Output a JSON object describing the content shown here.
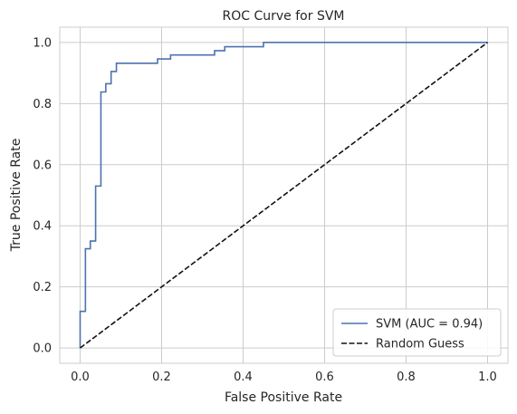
{
  "chart_data": {
    "type": "line",
    "title": "ROC Curve for SVM",
    "xlabel": "False Positive Rate",
    "ylabel": "True Positive Rate",
    "xlim": [
      -0.05,
      1.05
    ],
    "ylim": [
      -0.05,
      1.05
    ],
    "xticks": [
      "0.0",
      "0.2",
      "0.4",
      "0.6",
      "0.8",
      "1.0"
    ],
    "yticks": [
      "0.0",
      "0.2",
      "0.4",
      "0.6",
      "0.8",
      "1.0"
    ],
    "grid": true,
    "legend_position": "lower-right",
    "series": [
      {
        "name": "SVM (AUC = 0.94)",
        "color": "#4c72b0",
        "style": "solid",
        "x": [
          0.0,
          0.0,
          0.013,
          0.013,
          0.025,
          0.025,
          0.038,
          0.038,
          0.051,
          0.051,
          0.063,
          0.063,
          0.076,
          0.076,
          0.089,
          0.089,
          0.101,
          0.101,
          0.19,
          0.19,
          0.222,
          0.222,
          0.33,
          0.33,
          0.355,
          0.355,
          0.45,
          0.45,
          1.0
        ],
        "y": [
          0.0,
          0.12,
          0.12,
          0.325,
          0.325,
          0.35,
          0.35,
          0.53,
          0.53,
          0.838,
          0.838,
          0.865,
          0.865,
          0.905,
          0.905,
          0.932,
          0.932,
          0.932,
          0.932,
          0.946,
          0.946,
          0.959,
          0.959,
          0.973,
          0.973,
          0.986,
          0.986,
          1.0,
          1.0
        ]
      },
      {
        "name": "Random Guess",
        "color": "#111111",
        "style": "dashed",
        "x": [
          0.0,
          1.0
        ],
        "y": [
          0.0,
          1.0
        ]
      }
    ]
  },
  "colors": {
    "grid": "#cccccc",
    "axes_edge": "#cccccc",
    "legend_edge": "#cccccc"
  }
}
